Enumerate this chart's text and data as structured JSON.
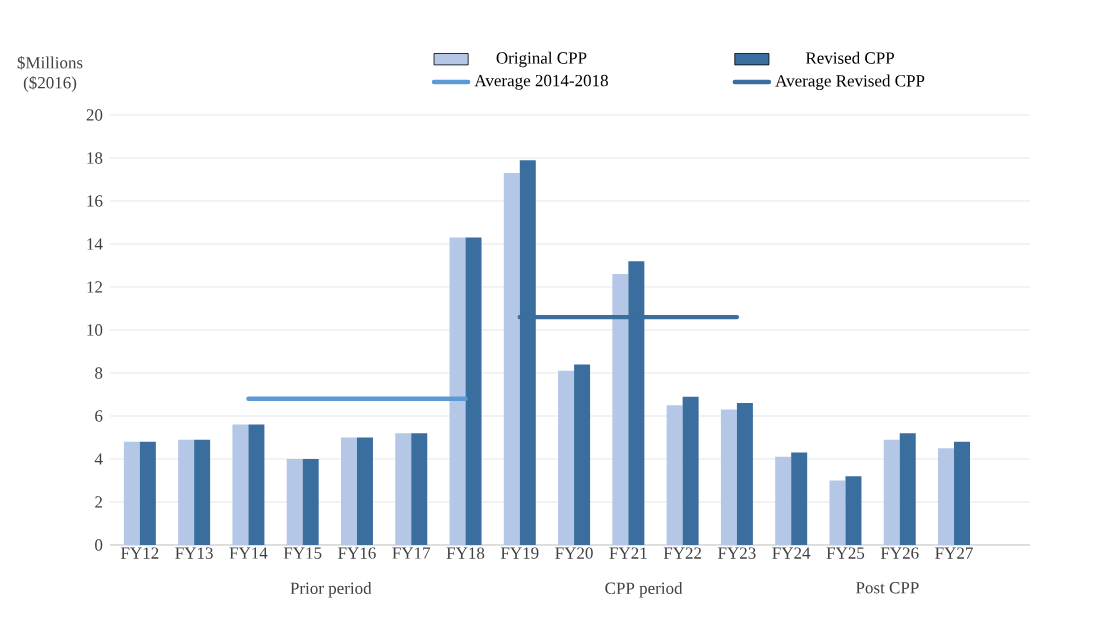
{
  "chart_data": {
    "type": "bar",
    "ylabel": "$Millions ($2016)",
    "categories": [
      "FY12",
      "FY13",
      "FY14",
      "FY15",
      "FY16",
      "FY17",
      "FY18",
      "FY19",
      "FY20",
      "FY21",
      "FY22",
      "FY23",
      "FY24",
      "FY25",
      "FY26",
      "FY27"
    ],
    "series": [
      {
        "name": "Original CPP",
        "color": "#b4c7e7",
        "values": [
          4.8,
          4.9,
          5.6,
          4.0,
          5.0,
          5.2,
          14.3,
          17.3,
          8.1,
          12.6,
          6.5,
          6.3,
          4.1,
          3.0,
          4.9,
          4.5
        ]
      },
      {
        "name": "Revised CPP",
        "color": "#3a6e9f",
        "values": [
          4.8,
          4.9,
          5.6,
          4.0,
          5.0,
          5.2,
          14.3,
          17.9,
          8.4,
          13.2,
          6.9,
          6.6,
          4.3,
          3.2,
          5.2,
          4.8
        ]
      },
      {
        "name": "Average 2014-2018",
        "type": "line",
        "color": "#5b9bd5",
        "values": [
          null,
          null,
          6.8,
          6.8,
          6.8,
          6.8,
          6.8,
          null,
          null,
          null,
          null,
          null,
          null,
          null,
          null,
          null
        ]
      },
      {
        "name": "Average Revised CPP",
        "type": "line",
        "color": "#3a6e9f",
        "values": [
          null,
          null,
          null,
          null,
          null,
          null,
          null,
          10.6,
          10.6,
          10.6,
          10.6,
          10.6,
          null,
          null,
          null,
          null
        ]
      }
    ],
    "ylim": [
      0,
      20
    ],
    "yticks": [
      0,
      2,
      4,
      6,
      8,
      10,
      12,
      14,
      16,
      18,
      20
    ],
    "grid": "y",
    "legend": "top",
    "annotations": [
      "Prior period",
      "CPP period",
      "Post CPP"
    ]
  }
}
